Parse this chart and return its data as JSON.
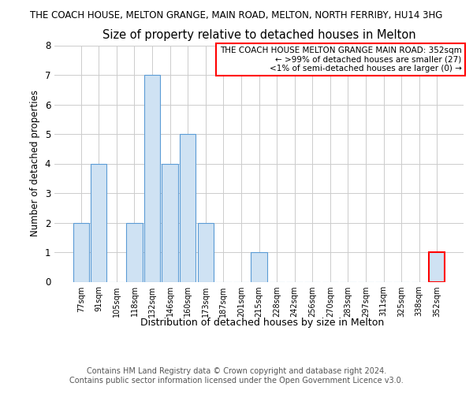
{
  "title_line1": "THE COACH HOUSE, MELTON GRANGE, MAIN ROAD, MELTON, NORTH FERRIBY, HU14 3HG",
  "title_line2": "Size of property relative to detached houses in Melton",
  "xlabel": "Distribution of detached houses by size in Melton",
  "ylabel": "Number of detached properties",
  "categories": [
    "77sqm",
    "91sqm",
    "105sqm",
    "118sqm",
    "132sqm",
    "146sqm",
    "160sqm",
    "173sqm",
    "187sqm",
    "201sqm",
    "215sqm",
    "228sqm",
    "242sqm",
    "256sqm",
    "270sqm",
    "283sqm",
    "297sqm",
    "311sqm",
    "325sqm",
    "338sqm",
    "352sqm"
  ],
  "values": [
    2,
    4,
    0,
    2,
    7,
    4,
    5,
    2,
    0,
    0,
    1,
    0,
    0,
    0,
    0,
    0,
    0,
    0,
    0,
    0,
    1
  ],
  "bar_color": "#cfe2f3",
  "bar_edge_color": "#5b9bd5",
  "highlight_bar_index": 20,
  "highlight_bar_edge_color": "#ff0000",
  "annotation_box_text": "THE COACH HOUSE MELTON GRANGE MAIN ROAD: 352sqm\n← >99% of detached houses are smaller (27)\n<1% of semi-detached houses are larger (0) →",
  "annotation_box_color": "#ffffff",
  "annotation_box_edge_color": "#ff0000",
  "footer_text": "Contains HM Land Registry data © Crown copyright and database right 2024.\nContains public sector information licensed under the Open Government Licence v3.0.",
  "ylim": [
    0,
    8
  ],
  "yticks": [
    0,
    1,
    2,
    3,
    4,
    5,
    6,
    7,
    8
  ],
  "grid_color": "#cccccc",
  "background_color": "#ffffff",
  "title_fontsize": 8.5,
  "subtitle_fontsize": 10.5,
  "ylabel_fontsize": 8.5,
  "xlabel_fontsize": 9,
  "xtick_fontsize": 7,
  "ytick_fontsize": 8.5,
  "annotation_fontsize": 7.5,
  "footer_fontsize": 7
}
